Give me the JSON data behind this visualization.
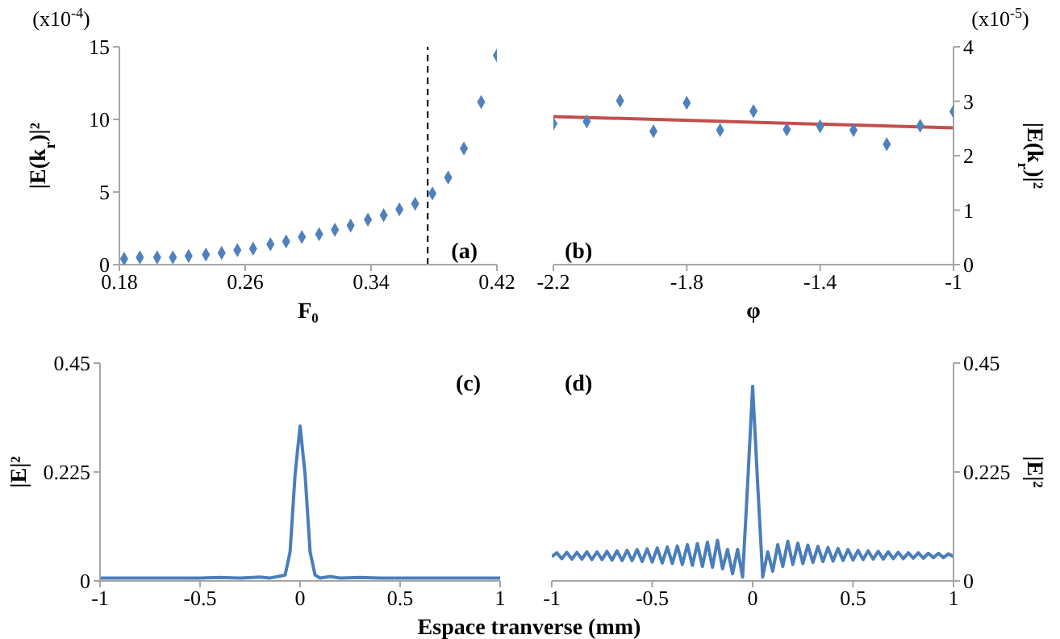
{
  "chart_data": [
    {
      "type": "scatter",
      "xlabel": "F₀",
      "ylabel": "|E(k$_{r}$)|²",
      "annotations": [
        "(x10$^{-4}$)",
        "(a)"
      ],
      "color": "#4f81bd",
      "marker": "diamond",
      "x": [
        0.183,
        0.193,
        0.204,
        0.214,
        0.224,
        0.235,
        0.245,
        0.255,
        0.265,
        0.276,
        0.286,
        0.296,
        0.307,
        0.317,
        0.327,
        0.338,
        0.348,
        0.358,
        0.368,
        0.379,
        0.389,
        0.399,
        0.41,
        0.42
      ],
      "values": [
        0.4,
        0.5,
        0.5,
        0.5,
        0.6,
        0.7,
        0.8,
        1.0,
        1.1,
        1.4,
        1.6,
        1.9,
        2.1,
        2.4,
        2.7,
        3.1,
        3.4,
        3.8,
        4.2,
        4.9,
        6.0,
        8.0,
        11.2,
        14.4
      ],
      "xlim": [
        0.18,
        0.42
      ],
      "xticks": [
        0.18,
        0.26,
        0.34,
        0.42
      ],
      "ylim": [
        0,
        15
      ],
      "yticks": [
        0,
        5,
        10,
        15
      ],
      "ref_lines": [
        {
          "axis": "x",
          "value": 0.376,
          "line_style": "dashed",
          "color": "#000000"
        }
      ]
    },
    {
      "type": "scatter",
      "xlabel": "φ",
      "y2label": "|E(k$_{r}$)|²",
      "annotations": [
        "(x10$^{-5}$)",
        "(b)"
      ],
      "series": [
        {
          "axis": "y2",
          "color": "#4f81bd",
          "marker": "diamond",
          "x": [
            -2.2,
            -2.1,
            -2.0,
            -1.9,
            -1.8,
            -1.7,
            -1.6,
            -1.5,
            -1.4,
            -1.3,
            -1.2,
            -1.1,
            -1.0
          ],
          "values": [
            2.59,
            2.63,
            3.01,
            2.45,
            2.97,
            2.47,
            2.82,
            2.48,
            2.54,
            2.47,
            2.21,
            2.55,
            2.81
          ]
        },
        {
          "type": "line",
          "axis": "y2",
          "color": "#c0504d",
          "marker": "none",
          "x": [
            -2.2,
            -1.0
          ],
          "values": [
            2.72,
            2.51
          ]
        }
      ],
      "xlim": [
        -2.2,
        -1
      ],
      "xticks": [
        -2.2,
        -1.8,
        -1.4,
        -1
      ],
      "y2lim": [
        0,
        4
      ],
      "y2ticks": [
        0,
        1,
        2,
        3,
        4
      ]
    },
    {
      "type": "line",
      "xlabel": "Espace tranverse (mm)",
      "ylabel": "|E|²",
      "annotations": [
        "(c)"
      ],
      "color": "#4a7ebb",
      "marker": "none",
      "x": [
        -1,
        -0.9,
        -0.8,
        -0.7,
        -0.6,
        -0.5,
        -0.4,
        -0.3,
        -0.2,
        -0.15,
        -0.1,
        -0.075,
        -0.05,
        -0.025,
        0,
        0.025,
        0.05,
        0.075,
        0.1,
        0.15,
        0.2,
        0.3,
        0.4,
        0.5,
        0.6,
        0.7,
        0.8,
        0.9,
        1
      ],
      "values": [
        0.006,
        0.006,
        0.006,
        0.006,
        0.006,
        0.006,
        0.007,
        0.006,
        0.008,
        0.006,
        0.01,
        0.012,
        0.06,
        0.22,
        0.32,
        0.22,
        0.06,
        0.012,
        0.006,
        0.009,
        0.006,
        0.007,
        0.006,
        0.006,
        0.006,
        0.006,
        0.006,
        0.006,
        0.006
      ],
      "xlim": [
        -1,
        1
      ],
      "xticks": [
        -1,
        -0.5,
        0,
        0.5,
        1
      ],
      "ylim": [
        0,
        0.45
      ],
      "yticks": [
        0,
        0.225,
        0.45
      ]
    },
    {
      "type": "line",
      "y2label": "|E|²",
      "annotations": [
        "(d)"
      ],
      "series": [
        {
          "axis": "y2",
          "color": "#4a7ebb",
          "marker": "none",
          "x": [
            -1,
            -0.975,
            -0.95,
            -0.925,
            -0.9,
            -0.875,
            -0.85,
            -0.825,
            -0.8,
            -0.775,
            -0.75,
            -0.725,
            -0.7,
            -0.675,
            -0.65,
            -0.625,
            -0.6,
            -0.575,
            -0.55,
            -0.525,
            -0.5,
            -0.475,
            -0.45,
            -0.425,
            -0.4,
            -0.375,
            -0.35,
            -0.325,
            -0.3,
            -0.275,
            -0.25,
            -0.225,
            -0.2,
            -0.175,
            -0.15,
            -0.125,
            -0.1,
            -0.075,
            -0.05,
            -0.025,
            0,
            0.025,
            0.05,
            0.075,
            0.1,
            0.125,
            0.15,
            0.175,
            0.2,
            0.225,
            0.25,
            0.275,
            0.3,
            0.325,
            0.35,
            0.375,
            0.4,
            0.425,
            0.45,
            0.475,
            0.5,
            0.525,
            0.55,
            0.575,
            0.6,
            0.625,
            0.65,
            0.675,
            0.7,
            0.725,
            0.75,
            0.775,
            0.8,
            0.825,
            0.85,
            0.875,
            0.9,
            0.925,
            0.95,
            0.975,
            1
          ],
          "values": [
            0.05,
            0.058,
            0.046,
            0.059,
            0.045,
            0.059,
            0.045,
            0.06,
            0.044,
            0.06,
            0.044,
            0.061,
            0.043,
            0.062,
            0.042,
            0.063,
            0.042,
            0.065,
            0.04,
            0.066,
            0.039,
            0.068,
            0.037,
            0.07,
            0.036,
            0.072,
            0.034,
            0.075,
            0.032,
            0.077,
            0.03,
            0.08,
            0.028,
            0.084,
            0.025,
            0.065,
            0.015,
            0.065,
            0.008,
            0.2,
            0.402,
            0.2,
            0.008,
            0.06,
            0.02,
            0.075,
            0.03,
            0.082,
            0.034,
            0.078,
            0.036,
            0.074,
            0.038,
            0.071,
            0.04,
            0.069,
            0.041,
            0.067,
            0.042,
            0.065,
            0.043,
            0.063,
            0.044,
            0.062,
            0.045,
            0.061,
            0.045,
            0.06,
            0.046,
            0.059,
            0.046,
            0.058,
            0.047,
            0.058,
            0.047,
            0.057,
            0.048,
            0.057,
            0.048,
            0.056,
            0.05
          ]
        }
      ],
      "xlim": [
        -1,
        1
      ],
      "xticks": [
        -1,
        -0.5,
        0,
        0.5,
        1
      ],
      "y2lim": [
        0,
        0.45
      ],
      "y2ticks": [
        0,
        0.225,
        0.45
      ]
    }
  ]
}
